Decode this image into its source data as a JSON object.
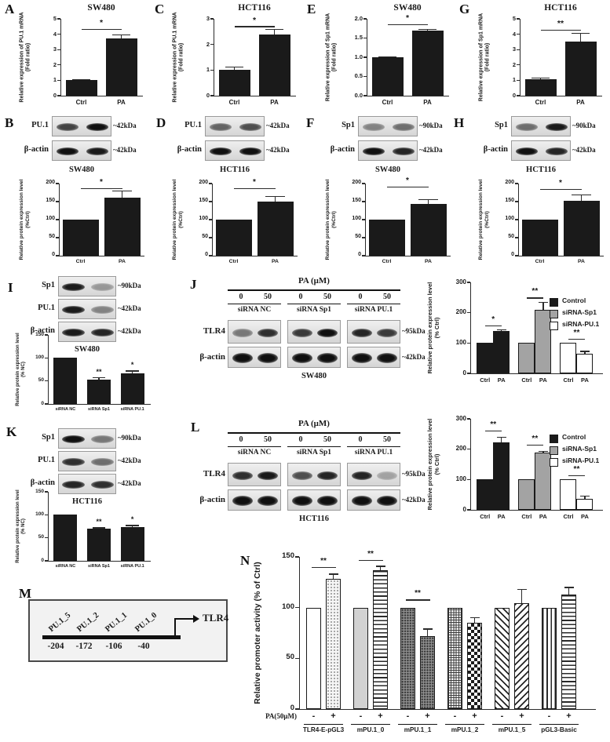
{
  "letters": {
    "A": "A",
    "B": "B",
    "C": "C",
    "D": "D",
    "E": "E",
    "F": "F",
    "G": "G",
    "H": "H",
    "I": "I",
    "J": "J",
    "K": "K",
    "L": "L",
    "M": "M",
    "N": "N"
  },
  "colors": {
    "bar_black": "#1a1a1a",
    "bar_gray": "#a3a3a3",
    "bar_white": "#ffffff",
    "axis": "#3d3d3d"
  },
  "chart_data": {
    "A": {
      "type": "bar",
      "title": "SW480",
      "ylabel": "Relative expression of PU.1 mRNA",
      "ylabel2": "(Fold ratio)",
      "ylim": [
        0,
        5
      ],
      "yticks": [
        "0",
        "1",
        "2",
        "3",
        "4",
        "5"
      ],
      "categories": [
        "Ctrl",
        "PA"
      ],
      "values": [
        1.0,
        3.7
      ],
      "errors": [
        0.05,
        0.25
      ],
      "sig": [
        {
          "from": 0,
          "to": 1,
          "label": "*",
          "y": 4.35
        }
      ]
    },
    "C": {
      "type": "bar",
      "title": "HCT116",
      "ylabel": "Relative expression of PU.1 mRNA",
      "ylabel2": "(Fold ratio)",
      "ylim": [
        0,
        3
      ],
      "yticks": [
        "0",
        "1",
        "2",
        "3"
      ],
      "categories": [
        "Ctrl",
        "PA"
      ],
      "values": [
        1.0,
        2.4
      ],
      "errors": [
        0.13,
        0.2
      ],
      "sig": [
        {
          "from": 0,
          "to": 1,
          "label": "*",
          "y": 2.72
        }
      ]
    },
    "E": {
      "type": "bar",
      "title": "SW480",
      "ylabel": "Relative expression of Sp1 mRNA",
      "ylabel2": "(Fold ratio)",
      "ylim": [
        0,
        2
      ],
      "yticks": [
        "0.0",
        "0.5",
        "1.0",
        "1.5",
        "2.0"
      ],
      "categories": [
        "Ctrl",
        "PA"
      ],
      "values": [
        1.0,
        1.7
      ],
      "errors": [
        0.02,
        0.03
      ],
      "sig": [
        {
          "from": 0,
          "to": 1,
          "label": "*",
          "y": 1.86
        }
      ]
    },
    "G": {
      "type": "bar",
      "title": "HCT116",
      "ylabel": "Relative expression of Sp1 mRNA",
      "ylabel2": "(Fold ratio)",
      "ylim": [
        0,
        5
      ],
      "yticks": [
        "0",
        "1",
        "2",
        "3",
        "4",
        "5"
      ],
      "categories": [
        "Ctrl",
        "PA"
      ],
      "values": [
        1.05,
        3.5
      ],
      "errors": [
        0.12,
        0.55
      ],
      "sig": [
        {
          "from": 0,
          "to": 1,
          "label": "**",
          "y": 4.3
        }
      ]
    },
    "B": {
      "type": "bar",
      "ylabel": "Relative protein expression level",
      "ylabel2": "(%Ctrl)",
      "ylim": [
        0,
        200
      ],
      "yticks": [
        "0",
        "50",
        "100",
        "150",
        "200"
      ],
      "categories": [
        "Ctrl",
        "PA"
      ],
      "values": [
        100,
        160
      ],
      "errors": [
        0,
        20
      ],
      "sig": [
        {
          "from": 0,
          "to": 1,
          "label": "*",
          "y": 187
        }
      ]
    },
    "D": {
      "type": "bar",
      "ylabel": "Relative protein expression level",
      "ylabel2": "(%Ctrl)",
      "ylim": [
        0,
        200
      ],
      "yticks": [
        "0",
        "50",
        "100",
        "150",
        "200"
      ],
      "categories": [
        "Ctrl",
        "PA"
      ],
      "values": [
        100,
        150
      ],
      "errors": [
        0,
        15
      ],
      "sig": [
        {
          "from": 0,
          "to": 1,
          "label": "*",
          "y": 187
        }
      ]
    },
    "F": {
      "type": "bar",
      "ylabel": "Relative protein expression level",
      "ylabel2": "(%Ctrl)",
      "ylim": [
        0,
        200
      ],
      "yticks": [
        "0",
        "50",
        "100",
        "150",
        "200"
      ],
      "categories": [
        "Ctrl",
        "PA"
      ],
      "values": [
        100,
        143
      ],
      "errors": [
        0,
        12
      ],
      "sig": [
        {
          "from": 0,
          "to": 1,
          "label": "*",
          "y": 192
        }
      ]
    },
    "H": {
      "type": "bar",
      "ylabel": "Relative protein expression level",
      "ylabel2": "(%Ctrl)",
      "ylim": [
        0,
        200
      ],
      "yticks": [
        "0",
        "50",
        "100",
        "150",
        "200"
      ],
      "categories": [
        "Ctrl",
        "PA"
      ],
      "values": [
        100,
        152
      ],
      "errors": [
        0,
        17
      ],
      "sig": [
        {
          "from": 0,
          "to": 1,
          "label": "*",
          "y": 185
        }
      ]
    },
    "I": {
      "type": "bar",
      "ylabel": "Relative protein expression level",
      "ylabel2": "(% NC)",
      "ylim": [
        0,
        150
      ],
      "yticks": [
        "0",
        "50",
        "100",
        "150"
      ],
      "categories": [
        "siRNA NC",
        "siRNA Sp1",
        "siRNA PU.1"
      ],
      "values": [
        100,
        53,
        67
      ],
      "errors": [
        0,
        4,
        5
      ],
      "stars": [
        "",
        "**",
        "*"
      ]
    },
    "K": {
      "type": "bar",
      "ylabel": "Relative protein expression level",
      "ylabel2": "(% NC)",
      "ylim": [
        0,
        150
      ],
      "yticks": [
        "0",
        "50",
        "100",
        "150"
      ],
      "categories": [
        "siRNA NC",
        "siRNA Sp1",
        "siRNA PU.1"
      ],
      "values": [
        100,
        70,
        74
      ],
      "errors": [
        0,
        2,
        3
      ],
      "stars": [
        "",
        "**",
        "*"
      ]
    },
    "J": {
      "type": "bar",
      "ylabel": "Relative protein expression level",
      "ylabel2": "(% Ctrl)",
      "ylim": [
        0,
        300
      ],
      "yticks": [
        "0",
        "100",
        "200",
        "300"
      ],
      "categories": [
        "Ctrl",
        "PA",
        "Ctrl",
        "PA",
        "Ctrl",
        "PA"
      ],
      "series_colors": [
        "black",
        "black",
        "gray",
        "gray",
        "white",
        "white"
      ],
      "values": [
        100,
        140,
        100,
        210,
        100,
        65
      ],
      "errors": [
        0,
        4,
        0,
        25,
        0,
        8
      ],
      "sig": [
        {
          "from": 0,
          "to": 1,
          "label": "*",
          "y": 158
        },
        {
          "from": 2,
          "to": 3,
          "label": "**",
          "y": 250
        },
        {
          "from": 4,
          "to": 5,
          "label": "**",
          "y": 115
        }
      ],
      "legend": [
        "Control",
        "siRNA-Sp1",
        "siRNA-PU.1"
      ]
    },
    "L": {
      "type": "bar",
      "ylabel": "Relative protein expression level",
      "ylabel2": "(% Ctrl)",
      "ylim": [
        0,
        300
      ],
      "yticks": [
        "0",
        "100",
        "200",
        "300"
      ],
      "categories": [
        "Ctrl",
        "PA",
        "Ctrl",
        "PA",
        "Ctrl",
        "PA"
      ],
      "series_colors": [
        "black",
        "black",
        "gray",
        "gray",
        "white",
        "white"
      ],
      "values": [
        100,
        222,
        100,
        188,
        100,
        37
      ],
      "errors": [
        0,
        18,
        0,
        5,
        0,
        8
      ],
      "sig": [
        {
          "from": 0,
          "to": 1,
          "label": "**",
          "y": 262
        },
        {
          "from": 2,
          "to": 3,
          "label": "**",
          "y": 215
        },
        {
          "from": 4,
          "to": 5,
          "label": "**",
          "y": 115
        }
      ],
      "legend": [
        "Control",
        "siRNA-Sp1",
        "siRNA-PU.1"
      ]
    },
    "N": {
      "type": "bar",
      "ylabel": "Relative promoter activity (% of Ctrl)",
      "ylim": [
        0,
        150
      ],
      "yticks": [
        "0",
        "50",
        "100",
        "150"
      ],
      "row_label": "PA(50μM)",
      "signs": [
        "-",
        "+"
      ],
      "groups": [
        {
          "label": "TLR4-E-pGL3",
          "values": [
            100,
            128
          ],
          "errors": [
            0,
            5
          ],
          "sig": "**",
          "sig_y": 140,
          "patterns": [
            "open",
            "stipple-light"
          ]
        },
        {
          "label": "mPU.1_0",
          "values": [
            100,
            137
          ],
          "errors": [
            0,
            4
          ],
          "sig": "**",
          "sig_y": 147,
          "patterns": [
            "solid-light",
            "stripes-h"
          ]
        },
        {
          "label": "mPU.1_1",
          "values": [
            100,
            72
          ],
          "errors": [
            0,
            7
          ],
          "sig": "**",
          "sig_y": 108,
          "patterns": [
            "stipple-dark",
            "stipple-dark"
          ]
        },
        {
          "label": "mPU.1_2",
          "values": [
            100,
            85
          ],
          "errors": [
            0,
            5
          ],
          "sig": null,
          "sig_y": 0,
          "patterns": [
            "grid-fine",
            "checker"
          ]
        },
        {
          "label": "mPU.1_5",
          "values": [
            100,
            104
          ],
          "errors": [
            0,
            14
          ],
          "sig": null,
          "sig_y": 0,
          "patterns": [
            "hatch-back",
            "hatch-fwd"
          ]
        },
        {
          "label": "pGL3-Basic",
          "values": [
            100,
            113
          ],
          "errors": [
            0,
            7
          ],
          "sig": null,
          "sig_y": 0,
          "patterns": [
            "stripes-v",
            "stripes-h"
          ]
        }
      ]
    }
  },
  "blots": {
    "B": {
      "cell": "SW480",
      "rows": [
        {
          "label": "PU.1",
          "kda": "~42kDa",
          "bands": [
            0.75,
            1
          ]
        },
        {
          "label": "β-actin",
          "kda": "~42kDa",
          "bands": [
            1,
            0.95
          ]
        }
      ]
    },
    "D": {
      "cell": "HCT116",
      "rows": [
        {
          "label": "PU.1",
          "kda": "~42kDa",
          "bands": [
            0.6,
            0.7
          ]
        },
        {
          "label": "β-actin",
          "kda": "~42kDa",
          "bands": [
            1,
            1
          ]
        }
      ]
    },
    "F": {
      "cell": "SW480",
      "rows": [
        {
          "label": "Sp1",
          "kda": "~90kDa",
          "bands": [
            0.45,
            0.55
          ]
        },
        {
          "label": "β-actin",
          "kda": "~42kDa",
          "bands": [
            1,
            0.9
          ]
        }
      ]
    },
    "H": {
      "cell": "HCT116",
      "rows": [
        {
          "label": "Sp1",
          "kda": "~90kDa",
          "bands": [
            0.55,
            0.95
          ]
        },
        {
          "label": "β-actin",
          "kda": "~42kDa",
          "bands": [
            1,
            0.9
          ]
        }
      ]
    },
    "I": {
      "cell": "SW480",
      "rows": [
        {
          "label": "Sp1",
          "kda": "~90kDa",
          "bands": [
            0.95,
            0.35
          ]
        },
        {
          "label": "PU.1",
          "kda": "~42kDa",
          "bands": [
            0.95,
            0.45
          ]
        },
        {
          "label": "β-actin",
          "kda": "~42kDa",
          "bands": [
            0.95,
            0.9
          ]
        }
      ]
    },
    "K": {
      "cell": "HCT116",
      "rows": [
        {
          "label": "Sp1",
          "kda": "~90kDa",
          "bands": [
            1,
            0.5
          ]
        },
        {
          "label": "PU.1",
          "kda": "~42kDa",
          "bands": [
            0.85,
            0.55
          ]
        },
        {
          "label": "β-actin",
          "kda": "~42kDa",
          "bands": [
            0.9,
            0.85
          ]
        }
      ]
    },
    "J": {
      "cell": "SW480",
      "header": "PA (μM)",
      "doses": [
        "0",
        "50"
      ],
      "groups": [
        "siRNA NC",
        "siRNA Sp1",
        "siRNA PU.1"
      ],
      "rows": [
        {
          "label": "TLR4",
          "kda": "~95kDa",
          "bands": [
            [
              0.5,
              0.85
            ],
            [
              0.8,
              1
            ],
            [
              0.9,
              0.8
            ]
          ]
        },
        {
          "label": "β-actin",
          "kda": "~42kDa",
          "bands": [
            [
              1,
              1
            ],
            [
              1,
              1
            ],
            [
              1,
              1
            ]
          ]
        }
      ]
    },
    "L": {
      "cell": "HCT116",
      "header": "PA (μM)",
      "doses": [
        "0",
        "50"
      ],
      "groups": [
        "siRNA NC",
        "siRNA Sp1",
        "siRNA PU.1"
      ],
      "rows": [
        {
          "label": "TLR4",
          "kda": "~95kDa",
          "bands": [
            [
              0.85,
              0.95
            ],
            [
              0.7,
              0.9
            ],
            [
              0.9,
              0.3
            ]
          ]
        },
        {
          "label": "β-actin",
          "kda": "~42kDa",
          "bands": [
            [
              1,
              1
            ],
            [
              1,
              1
            ],
            [
              1,
              1
            ]
          ]
        }
      ]
    }
  },
  "diagram": {
    "sites": [
      "PU.1_5",
      "PU.1_2",
      "PU.1_1",
      "PU.1_0"
    ],
    "positions": [
      "-204",
      "-172",
      "-106",
      "-40"
    ],
    "gene": "TLR4"
  }
}
